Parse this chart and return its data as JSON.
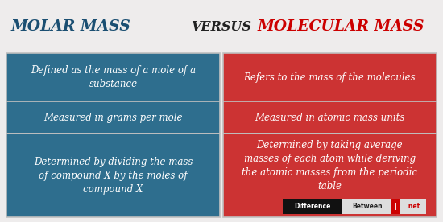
{
  "title_left": "MOLAR MASS",
  "title_center": "VERSUS",
  "title_right": "MOLECULAR MASS",
  "title_left_color": "#1b4f72",
  "title_center_color": "#222222",
  "title_right_color": "#cc0000",
  "left_color": "#2e6e8e",
  "right_color": "#cc3333",
  "border_color": "#c0c0c0",
  "text_color": "#ffffff",
  "bg_color": "#eeecec",
  "rows": [
    {
      "left": "Defined as the mass of a mole of a\nsubstance",
      "right": "Refers to the mass of the molecules"
    },
    {
      "left": "Measured in grams per mole",
      "right": "Measured in atomic mass units"
    },
    {
      "left": "Determined by dividing the mass\nof compound X by the moles of\ncompound X",
      "right": "Determined by taking average\nmasses of each atom while deriving\nthe atomic masses from the periodic\ntable"
    }
  ],
  "title_fontsize": 13.5,
  "cell_fontsize": 8.5,
  "wm_black_text": "Difference",
  "wm_white_text": "Between",
  "wm_red_text": ".net",
  "figsize": [
    5.5,
    2.76
  ],
  "dpi": 100
}
